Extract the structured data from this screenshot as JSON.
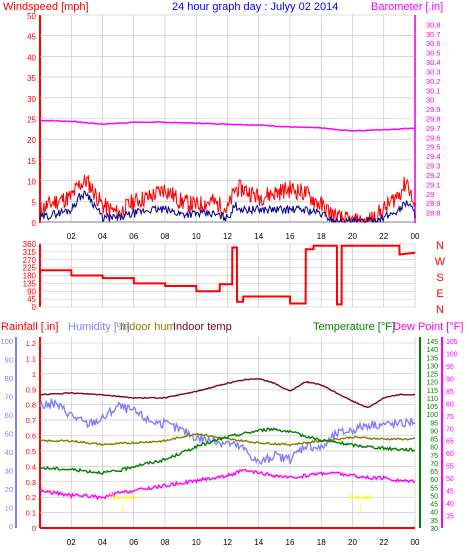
{
  "colors": {
    "windspeed": "#ff0000",
    "windavg": "#00008b",
    "barometer": "#ff00ff",
    "winddir": "#ff0000",
    "rainfall": "#ff0000",
    "humidity": "#8080ff",
    "indoor_hum": "#808000",
    "indoor_temp": "#800020",
    "temperature": "#008000",
    "dewpoint": "#ff00ff",
    "header_title": "#0000ff",
    "grid": "#c0c0c0"
  },
  "header": {
    "windspeed_label": "Windspeed [mph]",
    "title": "24 hour graph day : Julyy 02 2014",
    "barometer_label": "Barometer [.in]"
  },
  "x_ticks": [
    "02",
    "04",
    "06",
    "08",
    "10",
    "12",
    "14",
    "16",
    "18",
    "20",
    "22",
    "00"
  ],
  "compass": [
    "N",
    "W",
    "S",
    "E",
    "N"
  ],
  "labels": {
    "rainfall": "Rainfall [.in]",
    "humidity": "Humidity [%]",
    "indoor_hum": "Indoor hum",
    "indoor_temp": "Indoor temp",
    "temperature": "Temperature [°F]",
    "dewpoint": "Dew Point [°F]"
  },
  "annotations": [
    "Sunrise",
    "Sunset"
  ],
  "chart_data": [
    {
      "type": "line",
      "x_axis": "hour of day",
      "left_axis": {
        "label": "Windspeed [mph]",
        "ylim": [
          0,
          50
        ],
        "ticks": [
          "0",
          "5",
          "10",
          "15",
          "20",
          "25",
          "30",
          "35",
          "40",
          "45",
          "50"
        ]
      },
      "right_axis": {
        "label": "Barometer [.in]",
        "ylim": [
          28.7,
          30.9
        ],
        "ticks": [
          "28.8",
          "28.9",
          "29",
          "29.1",
          "29.2",
          "29.3",
          "29.4",
          "29.5",
          "29.6",
          "29.7",
          "29.8",
          "29.9",
          "30",
          "30.1",
          "30.2",
          "30.3",
          "30.4",
          "30.5",
          "30.6",
          "30.7",
          "30.8"
        ]
      },
      "series": [
        {
          "name": "Windspeed",
          "x": [
            0,
            1,
            2,
            2.5,
            3,
            3.5,
            4,
            5,
            6,
            7,
            8,
            9,
            10,
            11,
            12,
            12.5,
            13,
            14,
            15,
            16,
            17,
            18,
            19,
            20,
            21,
            22,
            23,
            23.5,
            24
          ],
          "values": [
            3,
            5,
            6,
            9,
            10,
            7,
            4,
            2,
            5,
            6,
            8,
            5,
            4,
            5,
            3,
            8,
            8,
            6,
            7,
            8,
            7,
            4,
            1,
            0,
            0,
            3,
            7,
            10,
            3
          ]
        },
        {
          "name": "Wind average",
          "x": [
            0,
            1,
            2,
            2.5,
            3,
            3.5,
            4,
            5,
            6,
            7,
            8,
            9,
            10,
            11,
            12,
            12.5,
            13,
            14,
            15,
            16,
            17,
            18,
            19,
            20,
            21,
            22,
            23,
            23.5,
            24
          ],
          "values": [
            1,
            2,
            3,
            6,
            7,
            4,
            1,
            1,
            2,
            3,
            3,
            2,
            2,
            2,
            1,
            4,
            3,
            3,
            3,
            3,
            3,
            2,
            0,
            0,
            0,
            1,
            3,
            5,
            2
          ]
        },
        {
          "name": "Barometer",
          "x": [
            0,
            2,
            4,
            6,
            8,
            10,
            12,
            14,
            16,
            18,
            19,
            20,
            22,
            24
          ],
          "values": [
            29.78,
            29.77,
            29.74,
            29.76,
            29.76,
            29.75,
            29.74,
            29.73,
            29.71,
            29.7,
            29.68,
            29.67,
            29.68,
            29.7
          ]
        }
      ]
    },
    {
      "type": "line",
      "x_axis": "hour of day",
      "ylim": [
        0,
        360
      ],
      "y_ticks": [
        "0",
        "45",
        "90",
        "135",
        "180",
        "225",
        "270",
        "315",
        "360"
      ],
      "right_labels": [
        "N",
        "W",
        "S",
        "E",
        "N"
      ],
      "series": [
        {
          "name": "Wind direction",
          "x": [
            0,
            2,
            2.01,
            4,
            4.01,
            6,
            6.01,
            8,
            8.01,
            10,
            10.01,
            11.5,
            11.51,
            12.3,
            12.31,
            12.6,
            12.61,
            13,
            13.01,
            16,
            16.01,
            17,
            17.01,
            17.5,
            17.51,
            19,
            19.01,
            19.3,
            19.31,
            23,
            23.01,
            24
          ],
          "values": [
            210,
            210,
            180,
            180,
            165,
            165,
            135,
            135,
            120,
            120,
            90,
            90,
            130,
            130,
            340,
            340,
            30,
            30,
            60,
            60,
            20,
            20,
            330,
            330,
            350,
            350,
            15,
            15,
            350,
            350,
            300,
            310
          ]
        }
      ]
    },
    {
      "type": "line",
      "x_axis": "hour of day",
      "axes": {
        "rainfall": {
          "label": "Rainfall [.in]",
          "ylim": [
            0,
            1.2
          ],
          "ticks": [
            "0",
            "0.1",
            "0.2",
            "0.3",
            "0.4",
            "0.5",
            "0.6",
            "0.7",
            "0.8",
            "0.9",
            "1",
            "1.1",
            "1.2"
          ]
        },
        "humidity": {
          "label": "Humidity [%]",
          "ylim": [
            0,
            100
          ],
          "ticks": [
            "0",
            "10",
            "20",
            "30",
            "40",
            "50",
            "60",
            "70",
            "80",
            "90",
            "100"
          ]
        },
        "temperature": {
          "label": "Temperature [°F]",
          "ylim": [
            30,
            145
          ],
          "ticks": [
            "30",
            "35",
            "40",
            "45",
            "50",
            "55",
            "60",
            "65",
            "70",
            "75",
            "80",
            "85",
            "90",
            "95",
            "100",
            "105",
            "110",
            "115",
            "120",
            "125",
            "130",
            "135",
            "140",
            "145"
          ]
        },
        "dewpoint": {
          "label": "Dew Point [°F]",
          "ylim": [
            30,
            105
          ],
          "ticks": [
            "35",
            "40",
            "45",
            "50",
            "55",
            "60",
            "65",
            "70",
            "75",
            "80",
            "85",
            "90",
            "95",
            "100",
            "105"
          ]
        }
      },
      "series": [
        {
          "name": "Rainfall",
          "axis": "rainfall",
          "x": [
            0,
            24
          ],
          "values": [
            0,
            0
          ]
        },
        {
          "name": "Humidity",
          "axis": "humidity",
          "x": [
            0,
            1,
            2,
            3,
            4,
            5,
            6,
            7,
            8,
            9,
            10,
            11,
            12,
            13,
            14,
            15,
            16,
            17,
            18,
            19,
            20,
            21,
            22,
            23,
            24
          ],
          "values": [
            65,
            66,
            60,
            55,
            58,
            65,
            62,
            57,
            55,
            52,
            48,
            46,
            45,
            42,
            34,
            38,
            36,
            44,
            42,
            50,
            52,
            55,
            55,
            55,
            57
          ]
        },
        {
          "name": "Indoor hum",
          "axis": "humidity",
          "x": [
            0,
            2,
            4,
            6,
            8,
            10,
            12,
            14,
            16,
            18,
            20,
            22,
            24
          ],
          "values": [
            46,
            46,
            44,
            45,
            46,
            50,
            47,
            45,
            44,
            46,
            48,
            47,
            47
          ]
        },
        {
          "name": "Indoor temp",
          "axis": "temperature",
          "x": [
            0,
            2,
            4,
            6,
            8,
            10,
            12,
            13,
            14,
            15,
            16,
            17,
            18,
            19,
            20,
            21,
            22,
            23,
            24
          ],
          "values": [
            112,
            113,
            112,
            110,
            110,
            114,
            119,
            121,
            122,
            119,
            114,
            120,
            118,
            113,
            108,
            104,
            110,
            112,
            112
          ]
        },
        {
          "name": "Temperature",
          "axis": "temperature",
          "x": [
            0,
            2,
            4,
            5,
            6,
            8,
            10,
            12,
            14,
            15,
            16,
            18,
            20,
            22,
            24
          ],
          "values": [
            67,
            66,
            64,
            65,
            68,
            72,
            80,
            86,
            90,
            91,
            89,
            84,
            81,
            79,
            78
          ]
        },
        {
          "name": "Dew Point",
          "axis": "dewpoint",
          "x": [
            0,
            1,
            2,
            3,
            4,
            5,
            6,
            7,
            8,
            9,
            10,
            11,
            12,
            13,
            14,
            15,
            16,
            17,
            18,
            19,
            20,
            21,
            22,
            23,
            24
          ],
          "values": [
            45,
            44,
            43,
            43,
            42,
            44,
            45,
            46,
            47,
            48,
            49,
            50,
            51,
            53,
            52,
            51,
            50,
            51,
            52,
            52,
            51,
            50,
            50,
            49,
            49
          ]
        }
      ],
      "annotations": [
        {
          "text": "Sunrise",
          "x": 5.3
        },
        {
          "text": "Sunset",
          "x": 20.5
        }
      ]
    }
  ]
}
